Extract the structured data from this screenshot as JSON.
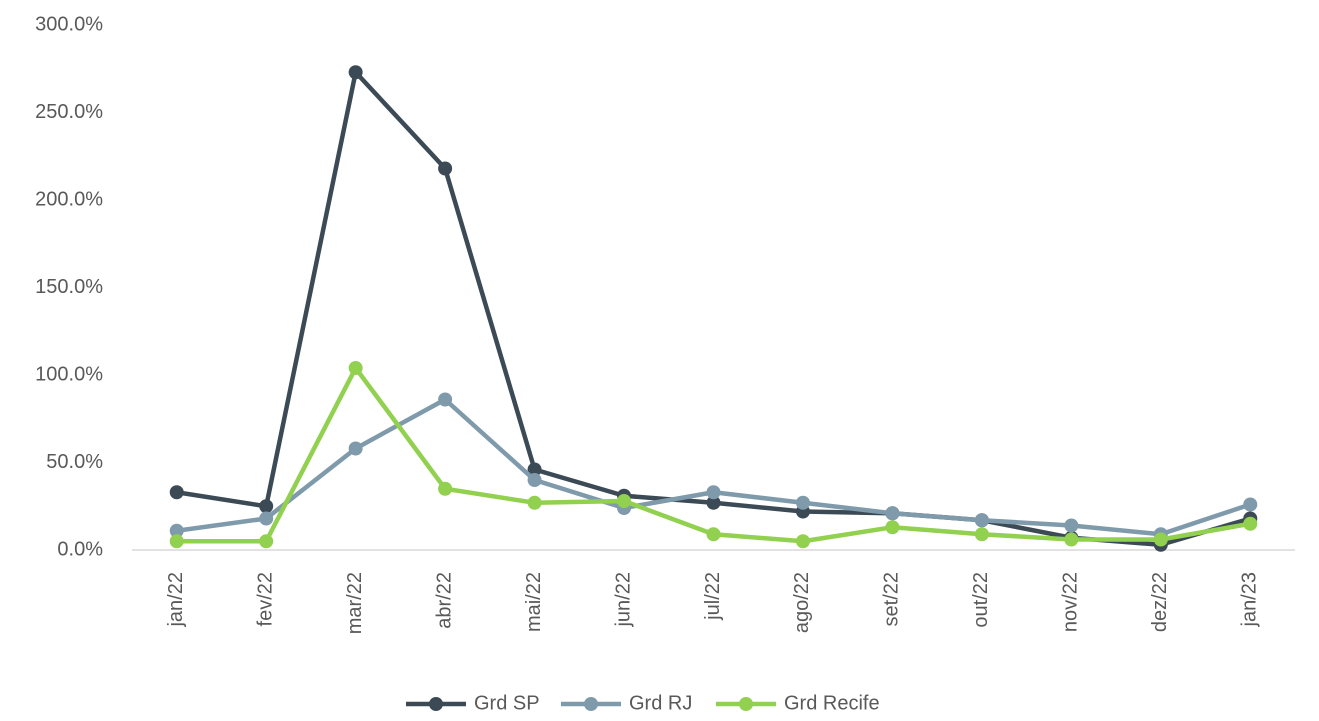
{
  "chart_data": {
    "type": "line",
    "categories": [
      "jan/22",
      "fev/22",
      "mar/22",
      "abr/22",
      "mai/22",
      "jun/22",
      "jul/22",
      "ago/22",
      "set/22",
      "out/22",
      "nov/22",
      "dez/22",
      "jan/23"
    ],
    "series": [
      {
        "name": "Grd SP",
        "color": "#3c4a56",
        "values": [
          33,
          25,
          273,
          218,
          46,
          31,
          27,
          22,
          21,
          17,
          7,
          3,
          18
        ]
      },
      {
        "name": "Grd RJ",
        "color": "#7f9aab",
        "values": [
          11,
          18,
          58,
          86,
          40,
          24,
          33,
          27,
          21,
          17,
          14,
          9,
          26
        ]
      },
      {
        "name": "Grd Recife",
        "color": "#92d050",
        "values": [
          5,
          5,
          104,
          35,
          27,
          28,
          9,
          5,
          13,
          9,
          6,
          6,
          15
        ]
      }
    ],
    "ylim": [
      0,
      300
    ],
    "yticks": [
      {
        "value": 0,
        "label": "0.0%"
      },
      {
        "value": 50,
        "label": "50.0%"
      },
      {
        "value": 100,
        "label": "100.0%"
      },
      {
        "value": 150,
        "label": "150.0%"
      },
      {
        "value": 200,
        "label": "200.0%"
      },
      {
        "value": 250,
        "label": "250.0%"
      },
      {
        "value": 300,
        "label": "300.0%"
      }
    ],
    "legend": "bottom"
  }
}
